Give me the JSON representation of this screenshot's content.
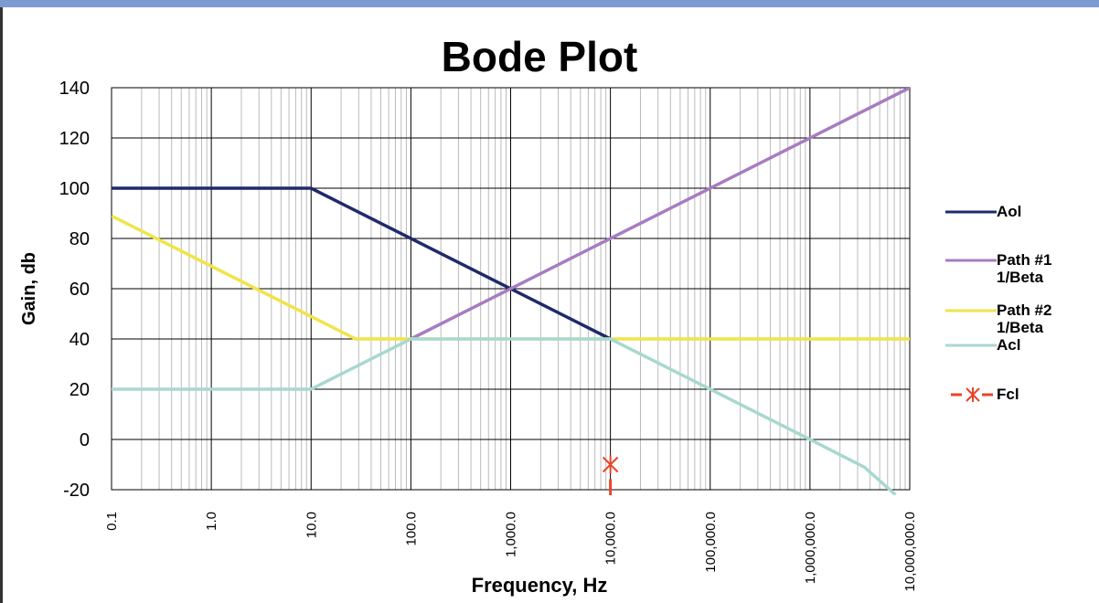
{
  "chart_data": {
    "type": "line",
    "title": "Bode Plot",
    "xlabel": "Frequency, Hz",
    "ylabel": "Gain, db",
    "xscale": "log",
    "xlim": [
      0.1,
      10000000
    ],
    "ylim": [
      -20,
      140
    ],
    "xticks": [
      {
        "value": 0.1,
        "label": "0.1"
      },
      {
        "value": 1,
        "label": "1.0"
      },
      {
        "value": 10,
        "label": "10.0"
      },
      {
        "value": 100,
        "label": "100.0"
      },
      {
        "value": 1000,
        "label": "1,000.0"
      },
      {
        "value": 10000,
        "label": "10,000.0"
      },
      {
        "value": 100000,
        "label": "100,000.0"
      },
      {
        "value": 1000000,
        "label": "1,000,000.0"
      },
      {
        "value": 10000000,
        "label": "10,000,000.0"
      }
    ],
    "yticks": [
      -20,
      0,
      20,
      40,
      60,
      80,
      100,
      120,
      140
    ],
    "grid": true,
    "minor_grid": true,
    "legend": "right",
    "series": [
      {
        "name": "Aol",
        "color": "#1f2a6b",
        "x": [
          0.1,
          10,
          10000
        ],
        "values": [
          100,
          100,
          40
        ]
      },
      {
        "name": "Path #1 1/Beta",
        "color": "#a77cc0",
        "x": [
          100,
          10000000
        ],
        "values": [
          40,
          140
        ]
      },
      {
        "name": "Path #2 1/Beta",
        "color": "#f0e44a",
        "x": [
          0.1,
          28,
          10000000
        ],
        "values": [
          89,
          40,
          40
        ]
      },
      {
        "name": "Acl",
        "color": "#a8d8d0",
        "x": [
          0.1,
          10,
          100,
          10000,
          1000000,
          3500000,
          7200000
        ],
        "values": [
          20,
          20,
          40,
          40,
          0,
          -11,
          -22
        ]
      },
      {
        "name": "Fcl",
        "color": "#e8442a",
        "marker": "star",
        "x": [
          10000
        ],
        "values": [
          -10
        ]
      }
    ]
  }
}
